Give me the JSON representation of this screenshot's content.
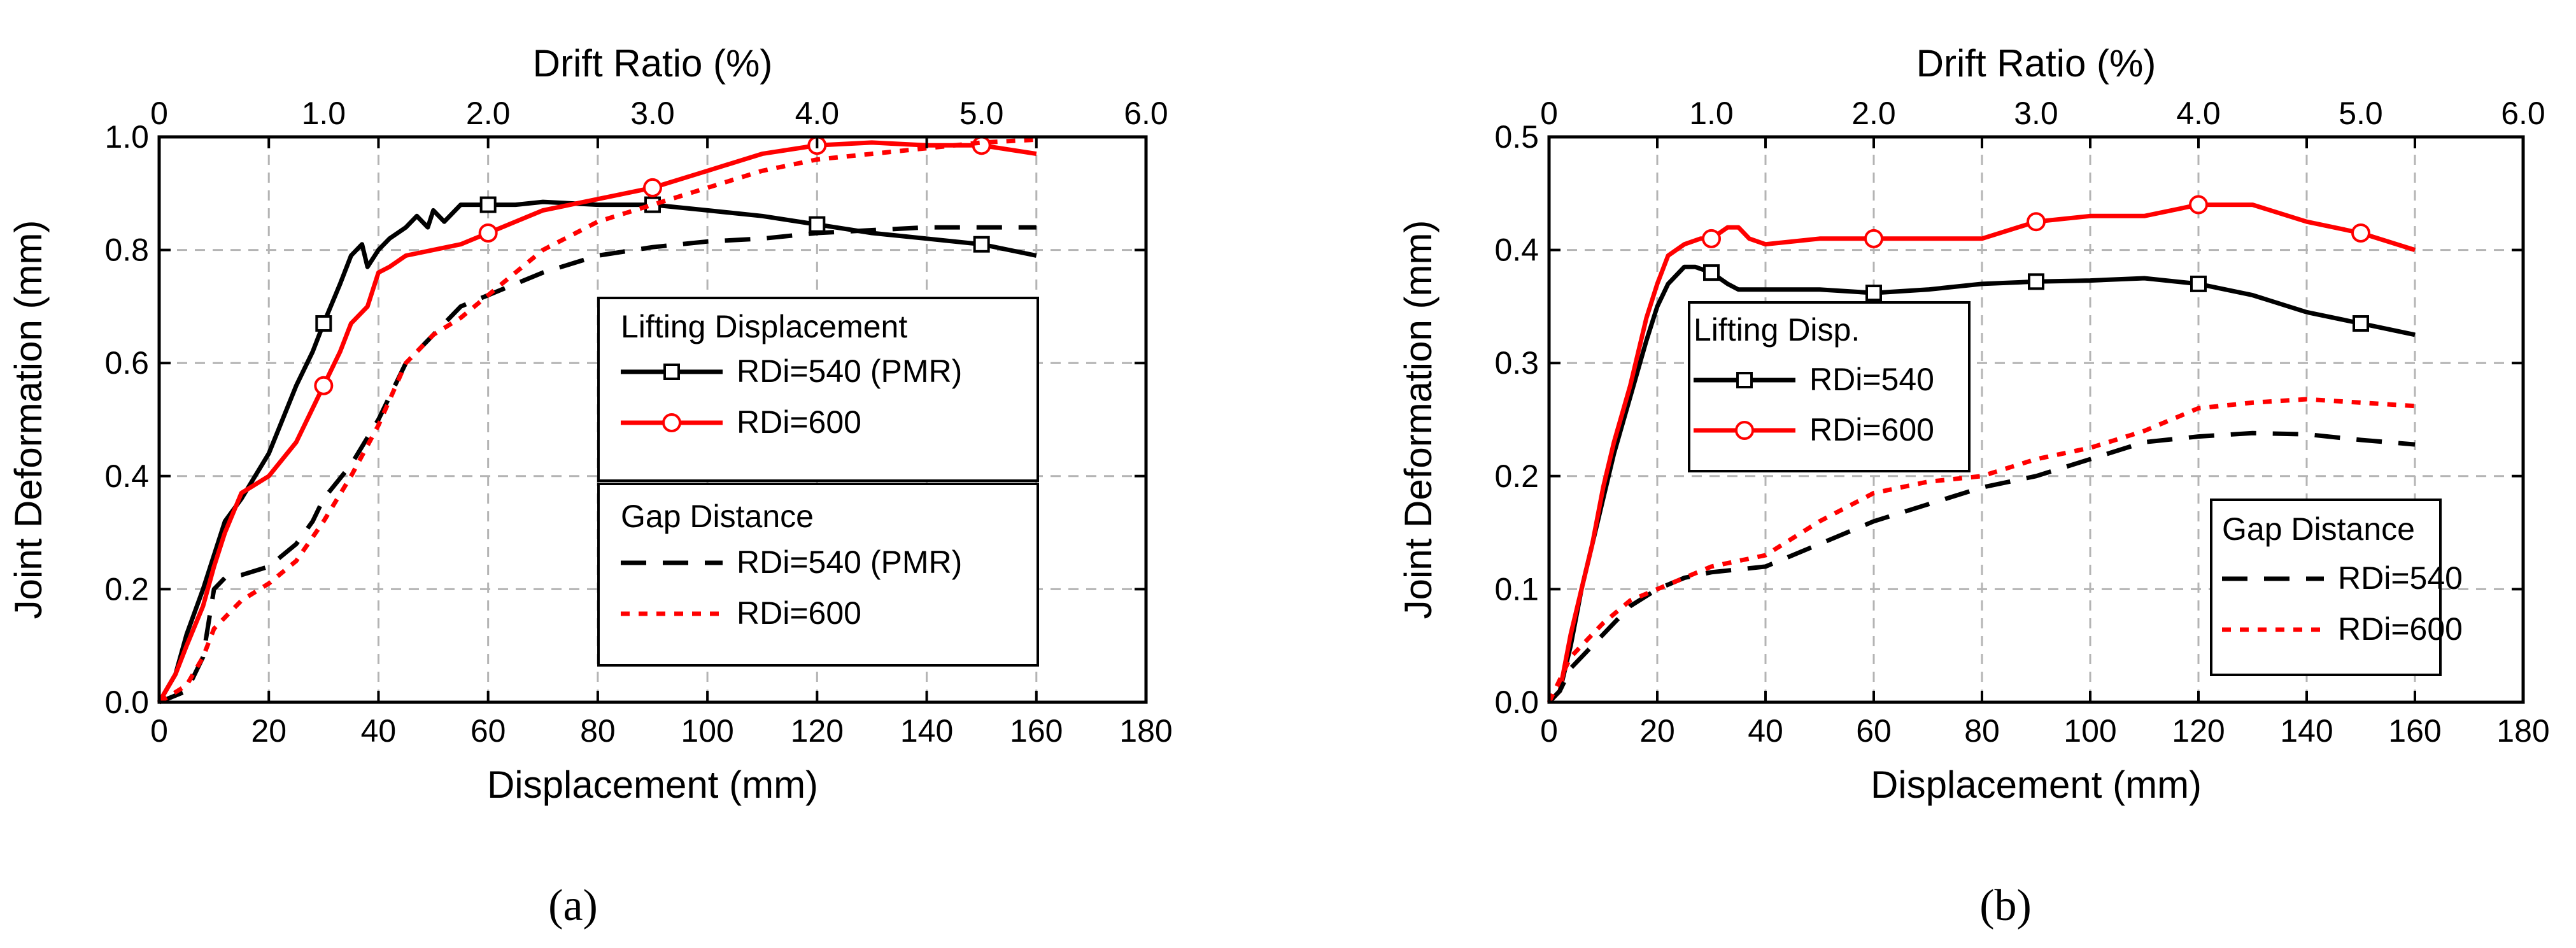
{
  "chart_data": [
    {
      "type": "line",
      "panel": "(a)",
      "ylabel": "Joint Deformation (mm)",
      "xlabel": "Displacement (mm)",
      "x2label": "Drift Ratio (%)",
      "xlim": [
        0,
        180
      ],
      "ylim": [
        0,
        1.0
      ],
      "x2lim": [
        0,
        6.0
      ],
      "xticks": [
        "0",
        "20",
        "40",
        "60",
        "80",
        "100",
        "120",
        "140",
        "160",
        "180"
      ],
      "yticks": [
        "0.0",
        "0.2",
        "0.4",
        "0.6",
        "0.8",
        "1.0"
      ],
      "x2ticks": [
        "0",
        "1.0",
        "2.0",
        "3.0",
        "4.0",
        "5.0",
        "6.0"
      ],
      "grid": true,
      "legends": [
        {
          "title": "Lifting Displacement",
          "entries": [
            "RDi=540 (PMR)",
            "RDi=600"
          ]
        },
        {
          "title": "Gap Distance",
          "entries": [
            "RDi=540 (PMR)",
            "RDi=600"
          ]
        }
      ],
      "series": [
        {
          "name": "Lifting Displacement RDi=540 (PMR)",
          "color": "#000000",
          "style": "solid",
          "marker": "square",
          "x": [
            0,
            3,
            5,
            8,
            10,
            12,
            15,
            20,
            25,
            28,
            30,
            33,
            35,
            37,
            38,
            40,
            42,
            45,
            47,
            49,
            50,
            52,
            55,
            60,
            65,
            70,
            80,
            90,
            100,
            110,
            120,
            130,
            140,
            150,
            160
          ],
          "y": [
            0.0,
            0.05,
            0.12,
            0.2,
            0.26,
            0.32,
            0.36,
            0.44,
            0.56,
            0.62,
            0.67,
            0.74,
            0.79,
            0.81,
            0.77,
            0.8,
            0.82,
            0.84,
            0.86,
            0.84,
            0.87,
            0.85,
            0.88,
            0.88,
            0.88,
            0.885,
            0.88,
            0.88,
            0.87,
            0.86,
            0.845,
            0.83,
            0.82,
            0.81,
            0.79
          ]
        },
        {
          "name": "Lifting Displacement RDi=600",
          "color": "#FF0000",
          "style": "solid",
          "marker": "circle",
          "x": [
            0,
            3,
            5,
            8,
            10,
            12,
            15,
            20,
            25,
            30,
            33,
            35,
            38,
            40,
            42,
            45,
            50,
            55,
            60,
            65,
            70,
            80,
            90,
            100,
            110,
            120,
            130,
            140,
            150,
            160
          ],
          "y": [
            0.0,
            0.05,
            0.1,
            0.17,
            0.24,
            0.3,
            0.37,
            0.4,
            0.46,
            0.56,
            0.62,
            0.67,
            0.7,
            0.76,
            0.77,
            0.79,
            0.8,
            0.81,
            0.83,
            0.85,
            0.87,
            0.89,
            0.91,
            0.94,
            0.97,
            0.985,
            0.99,
            0.985,
            0.985,
            0.97
          ]
        },
        {
          "name": "Gap Distance RDi=540 (PMR)",
          "color": "#000000",
          "style": "dashed",
          "marker": "none",
          "x": [
            0,
            5,
            8,
            10,
            12,
            15,
            20,
            25,
            28,
            30,
            35,
            40,
            45,
            50,
            55,
            60,
            70,
            80,
            90,
            100,
            110,
            120,
            130,
            140,
            150,
            160
          ],
          "y": [
            0.0,
            0.02,
            0.08,
            0.2,
            0.22,
            0.225,
            0.24,
            0.28,
            0.32,
            0.36,
            0.42,
            0.5,
            0.6,
            0.65,
            0.7,
            0.72,
            0.76,
            0.79,
            0.805,
            0.815,
            0.82,
            0.83,
            0.835,
            0.84,
            0.84,
            0.84
          ]
        },
        {
          "name": "Gap Distance RDi=600",
          "color": "#FF0000",
          "style": "dotted",
          "marker": "none",
          "x": [
            0,
            5,
            8,
            10,
            12,
            15,
            20,
            25,
            30,
            35,
            40,
            45,
            50,
            55,
            60,
            65,
            70,
            80,
            90,
            100,
            110,
            120,
            130,
            140,
            150,
            160
          ],
          "y": [
            0.0,
            0.03,
            0.08,
            0.13,
            0.15,
            0.18,
            0.21,
            0.25,
            0.32,
            0.4,
            0.49,
            0.6,
            0.65,
            0.68,
            0.72,
            0.76,
            0.8,
            0.85,
            0.88,
            0.91,
            0.94,
            0.96,
            0.97,
            0.98,
            0.99,
            0.995
          ]
        }
      ]
    },
    {
      "type": "line",
      "panel": "(b)",
      "ylabel": "Joint Deformation (mm)",
      "xlabel": "Displacement (mm)",
      "x2label": "Drift Ratio (%)",
      "xlim": [
        0,
        180
      ],
      "ylim": [
        0,
        0.5
      ],
      "x2lim": [
        0,
        6.0
      ],
      "xticks": [
        "0",
        "20",
        "40",
        "60",
        "80",
        "100",
        "120",
        "140",
        "160",
        "180"
      ],
      "yticks": [
        "0.0",
        "0.1",
        "0.2",
        "0.3",
        "0.4",
        "0.5"
      ],
      "x2ticks": [
        "0",
        "1.0",
        "2.0",
        "3.0",
        "4.0",
        "5.0",
        "6.0"
      ],
      "grid": true,
      "legends": [
        {
          "title": "Lifting Disp.",
          "entries": [
            "RDi=540",
            "RDi=600"
          ]
        },
        {
          "title": "Gap Distance",
          "entries": [
            "RDi=540",
            "RDi=600"
          ]
        }
      ],
      "series": [
        {
          "name": "Lifting Disp. RDi=540",
          "color": "#000000",
          "style": "solid",
          "marker": "square",
          "x": [
            0,
            2,
            4,
            6,
            8,
            10,
            12,
            15,
            18,
            20,
            22,
            25,
            27,
            30,
            33,
            35,
            40,
            50,
            60,
            70,
            80,
            90,
            100,
            110,
            120,
            130,
            140,
            150,
            160
          ],
          "y": [
            0.0,
            0.01,
            0.05,
            0.1,
            0.14,
            0.18,
            0.22,
            0.27,
            0.32,
            0.35,
            0.37,
            0.385,
            0.385,
            0.38,
            0.37,
            0.365,
            0.365,
            0.365,
            0.362,
            0.365,
            0.37,
            0.372,
            0.373,
            0.375,
            0.37,
            0.36,
            0.345,
            0.335,
            0.325
          ]
        },
        {
          "name": "Lifting Disp. RDi=600",
          "color": "#FF0000",
          "style": "solid",
          "marker": "circle",
          "x": [
            0,
            2,
            4,
            6,
            8,
            10,
            12,
            15,
            18,
            20,
            22,
            25,
            28,
            30,
            33,
            35,
            37,
            40,
            50,
            60,
            70,
            80,
            90,
            100,
            110,
            120,
            130,
            140,
            150,
            160
          ],
          "y": [
            0.0,
            0.01,
            0.06,
            0.1,
            0.14,
            0.19,
            0.23,
            0.28,
            0.34,
            0.37,
            0.395,
            0.405,
            0.41,
            0.41,
            0.42,
            0.42,
            0.41,
            0.405,
            0.41,
            0.41,
            0.41,
            0.41,
            0.425,
            0.43,
            0.43,
            0.44,
            0.44,
            0.425,
            0.415,
            0.4
          ]
        },
        {
          "name": "Gap Distance RDi=540",
          "color": "#000000",
          "style": "dashed",
          "marker": "none",
          "x": [
            0,
            2,
            4,
            6,
            10,
            15,
            20,
            25,
            30,
            40,
            50,
            60,
            70,
            80,
            90,
            100,
            110,
            120,
            130,
            140,
            150,
            160
          ],
          "y": [
            0.0,
            0.01,
            0.03,
            0.04,
            0.06,
            0.085,
            0.1,
            0.11,
            0.115,
            0.12,
            0.14,
            0.16,
            0.175,
            0.19,
            0.2,
            0.215,
            0.23,
            0.235,
            0.238,
            0.237,
            0.232,
            0.228
          ]
        },
        {
          "name": "Gap Distance RDi=600",
          "color": "#FF0000",
          "style": "dotted",
          "marker": "none",
          "x": [
            0,
            2,
            4,
            6,
            10,
            15,
            20,
            25,
            30,
            40,
            50,
            60,
            70,
            80,
            90,
            100,
            110,
            120,
            130,
            140,
            150,
            160
          ],
          "y": [
            0.0,
            0.02,
            0.04,
            0.05,
            0.07,
            0.09,
            0.1,
            0.11,
            0.12,
            0.13,
            0.16,
            0.185,
            0.195,
            0.2,
            0.215,
            0.225,
            0.24,
            0.26,
            0.265,
            0.268,
            0.265,
            0.262
          ]
        }
      ]
    }
  ]
}
